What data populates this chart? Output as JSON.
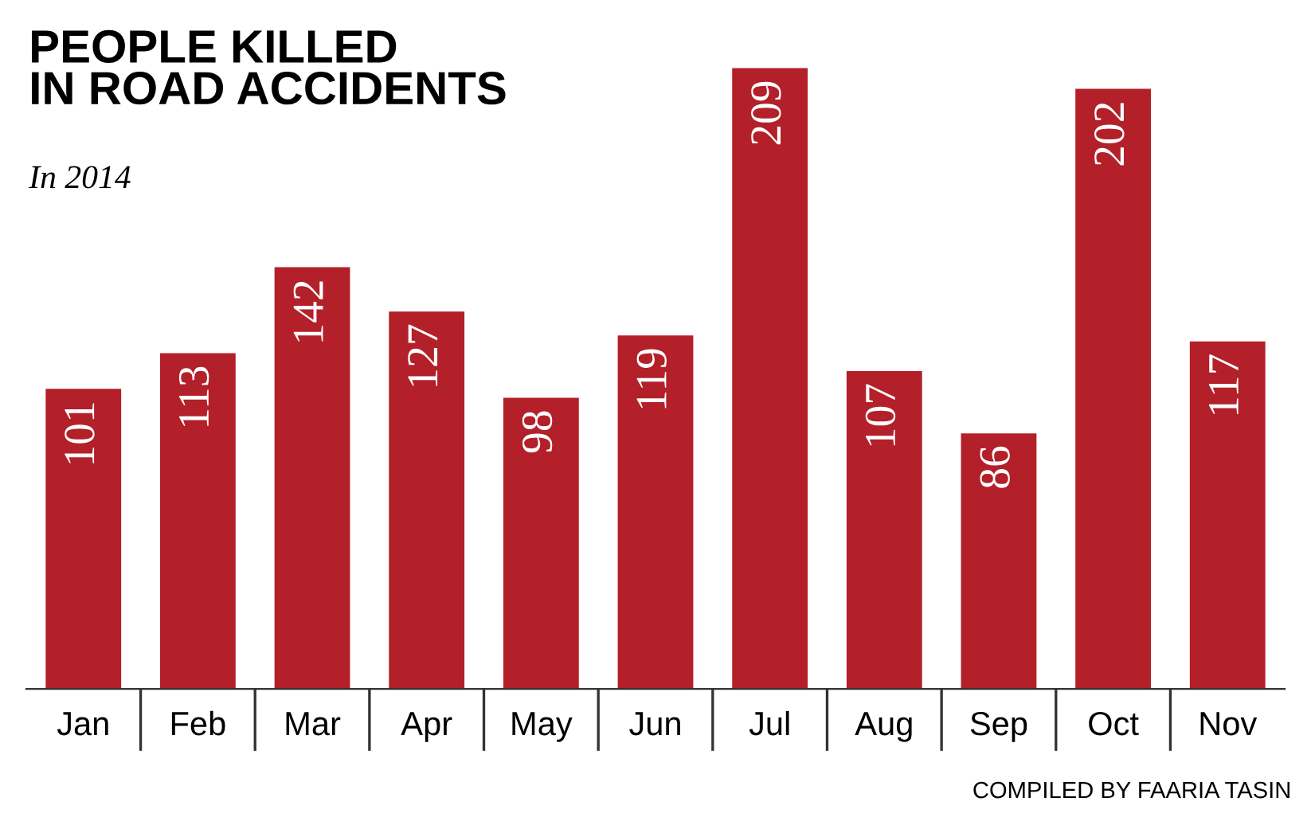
{
  "chart_data": {
    "type": "bar",
    "title": "PEOPLE KILLED\nIN ROAD ACCIDENTS",
    "subtitle": "In 2014",
    "categories": [
      "Jan",
      "Feb",
      "Mar",
      "Apr",
      "May",
      "Jun",
      "Jul",
      "Aug",
      "Sep",
      "Oct",
      "Nov"
    ],
    "values": [
      101,
      113,
      142,
      127,
      98,
      119,
      209,
      107,
      86,
      202,
      117
    ],
    "color": "#b3202a",
    "data_labels": true,
    "annotations": [
      "COMPILED BY FAARIA TASIN"
    ]
  }
}
